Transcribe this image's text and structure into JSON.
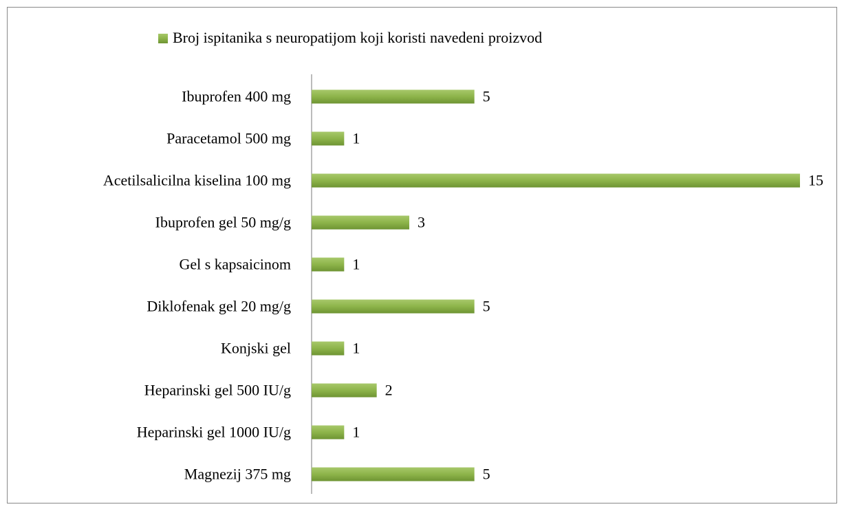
{
  "chart_data": {
    "type": "bar",
    "orientation": "horizontal",
    "categories": [
      "Ibuprofen 400 mg",
      "Paracetamol 500 mg",
      "Acetilsalicilna kiselina 100 mg",
      "Ibuprofen gel 50 mg/g",
      "Gel s kapsaicinom",
      "Diklofenak gel 20 mg/g",
      "Konjski gel",
      "Heparinski gel 500 IU/g",
      "Heparinski gel 1000 IU/g",
      "Magnezij 375 mg"
    ],
    "series": [
      {
        "name": "Broj ispitanika s neuropatijom koji koristi navedeni proizvod",
        "color": "#8db44a",
        "values": [
          5,
          1,
          15,
          3,
          1,
          5,
          1,
          2,
          1,
          5
        ]
      }
    ],
    "xlim": [
      0,
      15
    ],
    "legend": "top"
  }
}
